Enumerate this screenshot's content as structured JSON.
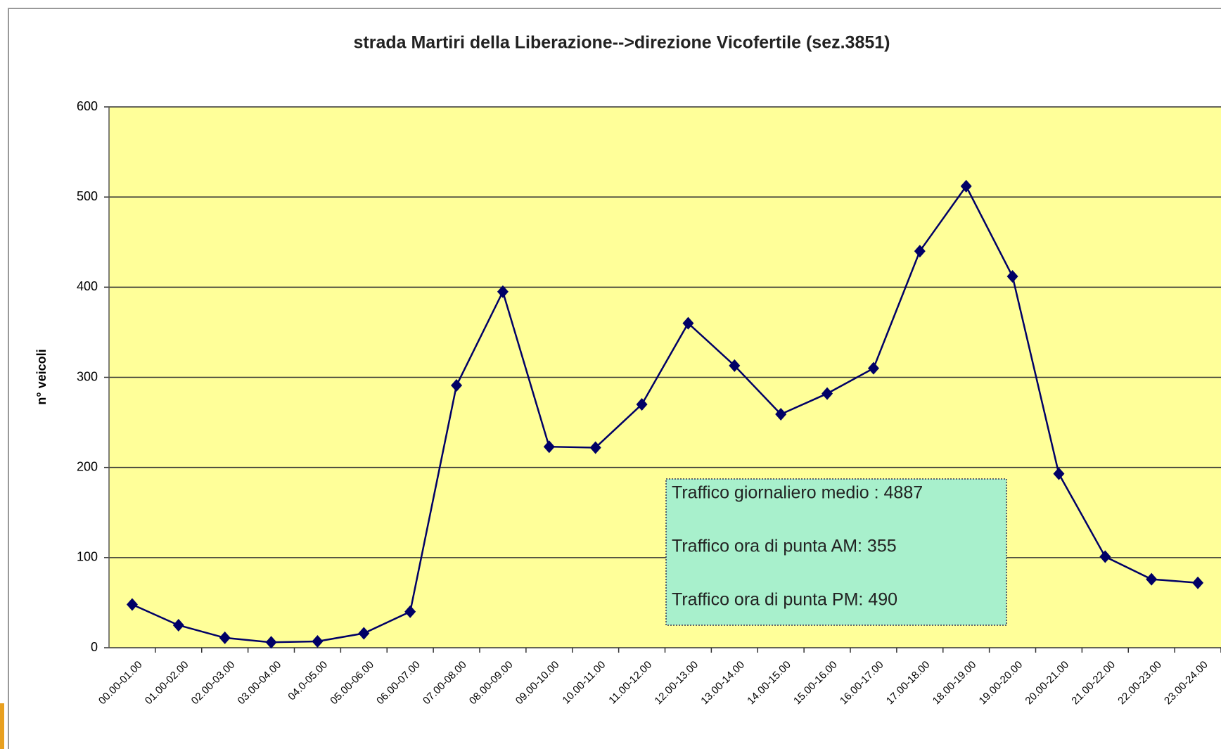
{
  "chart_data": {
    "type": "line",
    "title": "strada Martiri della Liberazione-->direzione Vicofertile (sez.3851)",
    "y_axis_label": "n° veicoli",
    "categories": [
      "00.00-01.00",
      "01.00-02.00",
      "02.00-03.00",
      "03.00-04.00",
      "04.0-05.00",
      "05.00-06.00",
      "06.00-07.00",
      "07.00-08.00",
      "08.00-09.00",
      "09.00-10.00",
      "10.00-11.00",
      "11.00-12.00",
      "12.00-13.00",
      "13.00-14.00",
      "14.00-15.00",
      "15.00-16.00",
      "16.00-17.00",
      "17.00-18.00",
      "18.00-19.00",
      "19.00-20.00",
      "20.00-21.00",
      "21.00-22.00",
      "22.00-23.00",
      "23.00-24.00"
    ],
    "series": [
      {
        "color": "#000066",
        "values": [
          48,
          25,
          11,
          6,
          7,
          16,
          40,
          291,
          395,
          223,
          222,
          270,
          360,
          313,
          259,
          282,
          310,
          440,
          512,
          412,
          193,
          101,
          76,
          72
        ]
      }
    ],
    "ylim": [
      0,
      600
    ],
    "yticks": [
      0,
      100,
      200,
      300,
      400,
      500,
      600
    ],
    "grid": true,
    "plot_background": "#ffff99",
    "annotations": [
      "Traffico giornaliero medio : 4887",
      "Traffico ora di punta AM: 355",
      "Traffico ora di punta PM: 490"
    ]
  }
}
